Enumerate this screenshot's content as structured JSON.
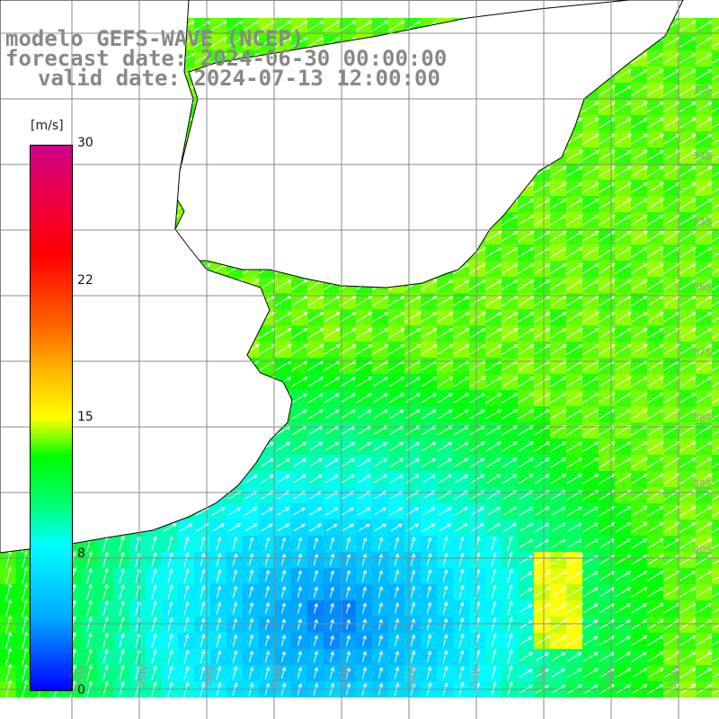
{
  "title": {
    "line1": "modelo GEFS-WAVE (NCEP)",
    "line2": "forecast date: 2024-06-30 00:00:00",
    "line3": "valid date: 2024-07-13 12:00:00"
  },
  "colorbar": {
    "unit": "[m/s]",
    "ticks": [
      "30",
      "22",
      "15",
      "8",
      "0"
    ],
    "colors": [
      "#0000ff",
      "#00aaff",
      "#00ffff",
      "#00ff00",
      "#ffff00",
      "#ff6600",
      "#ff0000",
      "#cc0088"
    ]
  },
  "map": {
    "variable": "wind speed with direction arrows",
    "lat_labels": [
      "33S",
      "34S",
      "35S",
      "36S",
      "37S",
      "38S",
      "39S",
      "40S"
    ],
    "lon_labels": [
      "60W",
      "59W",
      "58W",
      "57W",
      "56W",
      "55W",
      "54W",
      "53W",
      "52W",
      "51W"
    ],
    "palette": {
      "land": "#ffffff",
      "coast": "#000000",
      "grid": "#888888",
      "arrow": "#ffffff"
    }
  }
}
